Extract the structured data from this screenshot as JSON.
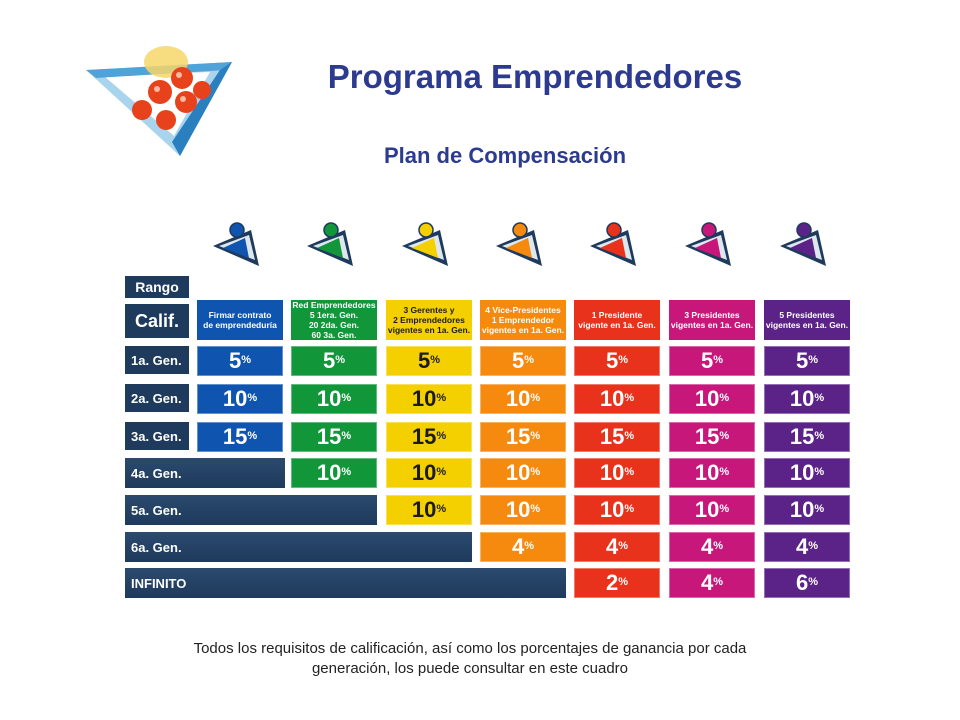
{
  "title": "Programa Emprendedores",
  "subtitle": "Plan  de Compensación",
  "row_labels": {
    "rango": "Rango",
    "calif": "Calif.",
    "gen1": "1a. Gen.",
    "gen2": "2a. Gen.",
    "gen3": "3a. Gen.",
    "gen4": "4a. Gen.",
    "gen5": "5a. Gen.",
    "gen6": "6a. Gen.",
    "infinito": "INFINITO"
  },
  "columns": [
    {
      "color": "#0f55b0",
      "header": [
        "Firmar contrato",
        "de emprendeduría"
      ],
      "values": {
        "gen1": "5",
        "gen2": "10",
        "gen3": "15"
      }
    },
    {
      "color": "#12963a",
      "header": [
        "Red Emprendedores",
        "5 1era. Gen.",
        "20 2da. Gen.",
        "60 3a. Gen."
      ],
      "values": {
        "gen1": "5",
        "gen2": "10",
        "gen3": "15",
        "gen4": "10"
      }
    },
    {
      "color": "#f5d000",
      "header": [
        "3  Gerentes y",
        "2 Emprendedores",
        "vigentes en 1a. Gen."
      ],
      "values": {
        "gen1": "5",
        "gen2": "10",
        "gen3": "15",
        "gen4": "10",
        "gen5": "10"
      }
    },
    {
      "color": "#f58a0f",
      "header": [
        "4 Vice-Presidentes",
        "1 Emprendedor",
        "vigentes en 1a. Gen."
      ],
      "values": {
        "gen1": "5",
        "gen2": "10",
        "gen3": "15",
        "gen4": "10",
        "gen5": "10",
        "gen6": "4"
      }
    },
    {
      "color": "#e8321c",
      "header": [
        "1 Presidente",
        "vigente en 1a. Gen."
      ],
      "values": {
        "gen1": "5",
        "gen2": "10",
        "gen3": "15",
        "gen4": "10",
        "gen5": "10",
        "gen6": "4",
        "infinito": "2"
      }
    },
    {
      "color": "#c8177a",
      "header": [
        "3 Presidentes",
        "vigentes en 1a. Gen."
      ],
      "values": {
        "gen1": "5",
        "gen2": "10",
        "gen3": "15",
        "gen4": "10",
        "gen5": "10",
        "gen6": "4",
        "infinito": "4"
      }
    },
    {
      "color": "#5b2387",
      "header": [
        "5 Presidentes",
        "vigentes en 1a. Gen."
      ],
      "values": {
        "gen1": "5",
        "gen2": "10",
        "gen3": "15",
        "gen4": "10",
        "gen5": "10",
        "gen6": "4",
        "infinito": "6"
      }
    }
  ],
  "percent_symbol": "%",
  "footer": [
    "Todos los requisitos de calificación, así como los porcentajes de ganancia por cada",
    "generación, los puede consultar en este cuadro"
  ]
}
